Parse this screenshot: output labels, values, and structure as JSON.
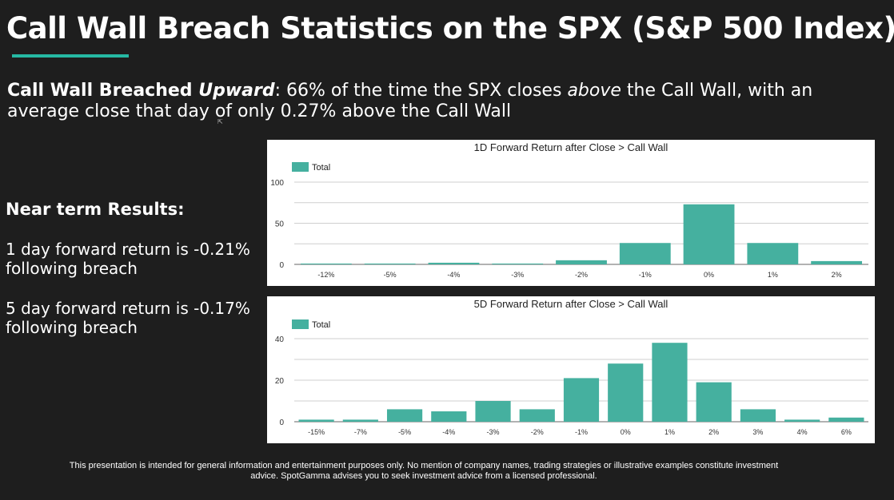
{
  "slide": {
    "title": "Call Wall Breach Statistics on the SPX (S&P 500 Index)",
    "breach": {
      "label_prefix": "Call Wall Breached ",
      "label_emph": "Upward",
      "label_suffix": ":",
      "text_1": " 66% of the time the SPX closes ",
      "text_emph": "above",
      "text_2": " the Call Wall, with an average close that day of only 0.27% above the Call Wall"
    },
    "near_term": {
      "heading": "Near term Results:",
      "one_day": "1 day forward return is -0.21% following breach",
      "five_day": "5 day forward return is -0.17% following breach"
    },
    "disclaimer": "This presentation is intended for general information and entertainment purposes only.  No mention of company names, trading strategies or illustrative examples constitute investment advice.  SpotGamma advises you to seek investment advice from a licensed professional.",
    "accent_color": "#26b9a3",
    "bar_color": "#45b09f"
  },
  "chart_data": [
    {
      "type": "bar",
      "title": "1D Forward Return after Close > Call Wall",
      "legend": "Total",
      "legend_position": "top-left",
      "categories": [
        "-12%",
        "-5%",
        "-4%",
        "-3%",
        "-2%",
        "-1%",
        "0%",
        "1%",
        "2%"
      ],
      "values": [
        1,
        1,
        2,
        1,
        5,
        26,
        73,
        26,
        4
      ],
      "yticks": [
        0,
        50,
        100
      ],
      "ylim": [
        0,
        100
      ],
      "xlabel": "",
      "ylabel": "",
      "grid": true
    },
    {
      "type": "bar",
      "title": "5D Forward Return after Close > Call Wall",
      "legend": "Total",
      "legend_position": "top-left",
      "categories": [
        "-15%",
        "-7%",
        "-5%",
        "-4%",
        "-3%",
        "-2%",
        "-1%",
        "0%",
        "1%",
        "2%",
        "3%",
        "4%",
        "6%"
      ],
      "values": [
        1,
        1,
        6,
        5,
        10,
        6,
        21,
        28,
        38,
        19,
        6,
        1,
        2
      ],
      "yticks": [
        0,
        20,
        40
      ],
      "ylim": [
        0,
        40
      ],
      "xlabel": "",
      "ylabel": "",
      "grid": true
    }
  ]
}
